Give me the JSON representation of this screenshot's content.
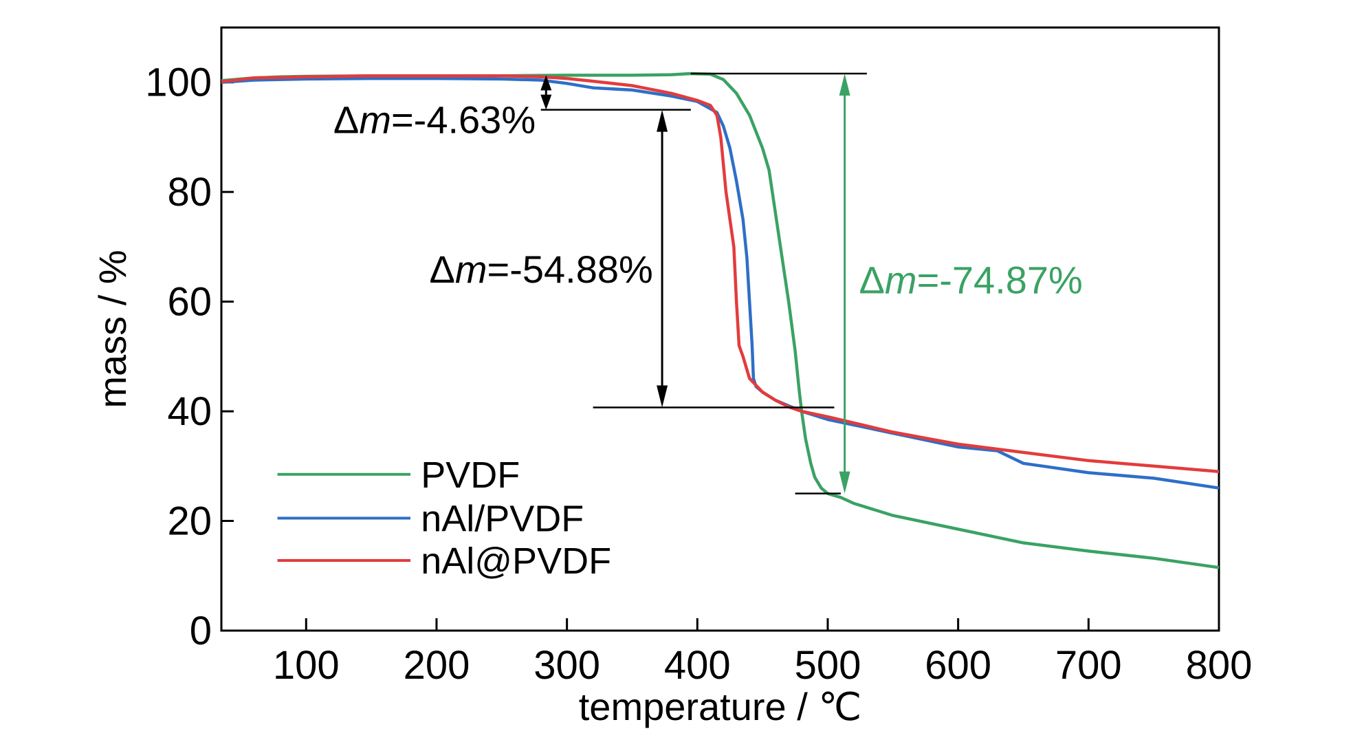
{
  "chart_data": {
    "type": "line",
    "title": "",
    "xlabel": "temperature / ℃",
    "ylabel": "mass / %",
    "xlim": [
      35,
      800
    ],
    "ylim": [
      0,
      110
    ],
    "xticks": [
      100,
      200,
      300,
      400,
      500,
      600,
      700,
      800
    ],
    "yticks": [
      0,
      20,
      40,
      60,
      80,
      100
    ],
    "grid": false,
    "legend_position": "bottom-left",
    "series": [
      {
        "name": "PVDF",
        "color": "#3aa264",
        "x": [
          35,
          60,
          80,
          100,
          150,
          200,
          250,
          300,
          350,
          380,
          395,
          410,
          420,
          430,
          440,
          450,
          455,
          460,
          465,
          470,
          475,
          478,
          480,
          483,
          487,
          490,
          495,
          500,
          510,
          520,
          550,
          600,
          650,
          700,
          750,
          800
        ],
        "y": [
          100.3,
          100.8,
          101.0,
          101.1,
          101.2,
          101.2,
          101.2,
          101.3,
          101.3,
          101.4,
          101.6,
          101.5,
          100.5,
          98.0,
          94.0,
          88.0,
          84.0,
          76.0,
          68.0,
          60.0,
          51.0,
          44.0,
          40.0,
          35.0,
          30.5,
          28.0,
          26.0,
          25.0,
          24.3,
          23.2,
          21.0,
          18.5,
          16.0,
          14.5,
          13.2,
          11.5
        ]
      },
      {
        "name": "nAl/PVDF",
        "color": "#2e6fc7",
        "x": [
          35,
          60,
          100,
          150,
          200,
          250,
          280,
          300,
          320,
          350,
          380,
          400,
          415,
          420,
          425,
          430,
          435,
          438,
          440,
          442,
          443,
          445,
          450,
          460,
          470,
          480,
          500,
          550,
          600,
          630,
          650,
          700,
          750,
          800
        ],
        "y": [
          100.0,
          100.4,
          100.6,
          100.7,
          100.7,
          100.6,
          100.4,
          99.8,
          99.0,
          98.6,
          97.5,
          96.5,
          94.5,
          92.0,
          88.0,
          82.0,
          75.0,
          68.0,
          60.0,
          52.0,
          46.0,
          44.5,
          43.5,
          42.0,
          41.0,
          40.0,
          38.5,
          36.0,
          33.5,
          32.8,
          30.5,
          28.8,
          27.8,
          26.0
        ]
      },
      {
        "name": "nAl@PVDF",
        "color": "#e23c3c",
        "x": [
          35,
          60,
          100,
          150,
          200,
          250,
          280,
          300,
          320,
          350,
          380,
          400,
          410,
          415,
          418,
          420,
          422,
          425,
          428,
          430,
          432,
          435,
          440,
          450,
          460,
          470,
          480,
          500,
          550,
          600,
          650,
          700,
          750,
          800
        ],
        "y": [
          100.1,
          100.8,
          101.0,
          101.2,
          101.2,
          101.2,
          101.0,
          100.7,
          100.2,
          99.4,
          98.0,
          96.7,
          95.8,
          94.0,
          90.0,
          85.0,
          80.0,
          75.0,
          70.0,
          60.0,
          52.0,
          50.0,
          46.0,
          43.5,
          42.0,
          40.8,
          40.0,
          39.0,
          36.2,
          34.0,
          32.5,
          31.0,
          30.0,
          29.0
        ]
      }
    ],
    "annotations": [
      {
        "id": "dm1",
        "text_prefix": "Δ",
        "text_var": "m",
        "text_value": "=-4.63%",
        "color": "#000000"
      },
      {
        "id": "dm2",
        "text_prefix": "Δ",
        "text_var": "m",
        "text_value": "=-54.88%",
        "color": "#000000"
      },
      {
        "id": "dm3",
        "text_prefix": "Δ",
        "text_var": "m",
        "text_value": "=-74.87%",
        "color": "#3aa264"
      }
    ]
  }
}
